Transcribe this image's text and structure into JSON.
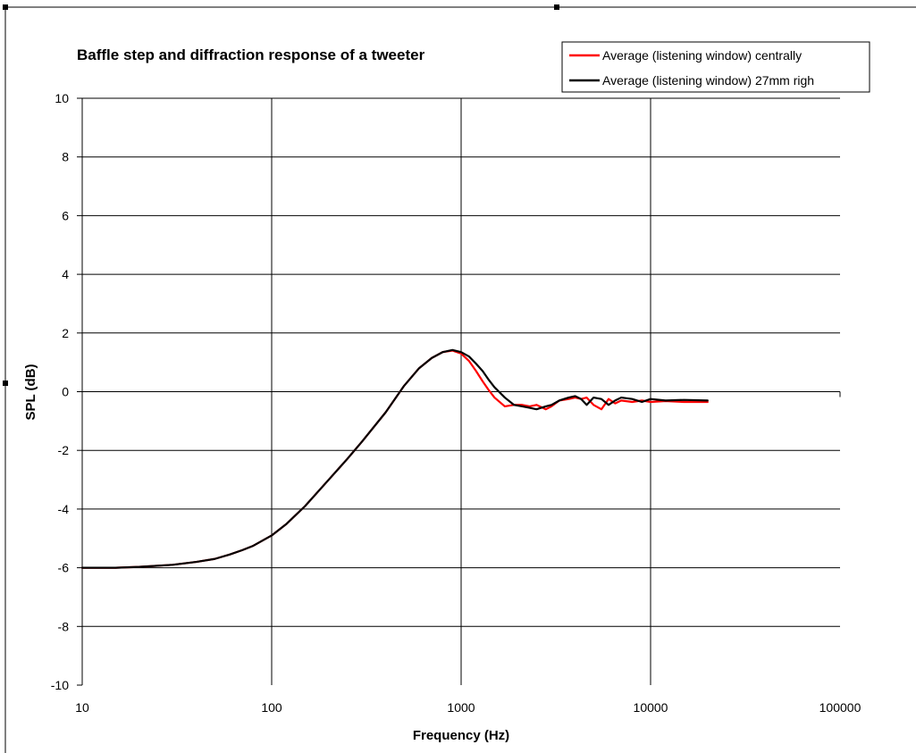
{
  "chart_data": {
    "type": "line",
    "title": "Baffle step and diffraction response of a tweeter",
    "xlabel": "Frequency (Hz)",
    "ylabel": "SPL (dB)",
    "x_scale": "log",
    "xlim": [
      10,
      100000
    ],
    "ylim": [
      -10,
      10
    ],
    "x_ticks": [
      "10",
      "100",
      "1000",
      "10000",
      "100000"
    ],
    "y_ticks": [
      "10",
      "8",
      "6",
      "4",
      "2",
      "0",
      "-2",
      "-4",
      "-6",
      "-8",
      "-10"
    ],
    "grid": true,
    "legend_position": "top-right",
    "series": [
      {
        "name": "Average (listening window) centrally",
        "color": "#ff0000",
        "x": [
          10,
          15,
          20,
          30,
          40,
          50,
          60,
          70,
          80,
          100,
          120,
          150,
          200,
          250,
          300,
          400,
          500,
          600,
          700,
          800,
          900,
          1000,
          1100,
          1200,
          1300,
          1400,
          1500,
          1700,
          1900,
          2100,
          2300,
          2500,
          2800,
          3000,
          3300,
          3700,
          4000,
          4300,
          4600,
          5000,
          5500,
          6000,
          6500,
          7000,
          8000,
          9000,
          10000,
          12000,
          15000,
          20000
        ],
        "values": [
          -6.0,
          -6.0,
          -5.97,
          -5.9,
          -5.8,
          -5.7,
          -5.55,
          -5.4,
          -5.25,
          -4.9,
          -4.5,
          -3.9,
          -3.0,
          -2.3,
          -1.7,
          -0.7,
          0.2,
          0.8,
          1.15,
          1.35,
          1.4,
          1.3,
          1.05,
          0.7,
          0.35,
          0.05,
          -0.2,
          -0.5,
          -0.45,
          -0.45,
          -0.5,
          -0.45,
          -0.6,
          -0.5,
          -0.3,
          -0.25,
          -0.2,
          -0.25,
          -0.2,
          -0.45,
          -0.6,
          -0.25,
          -0.4,
          -0.3,
          -0.35,
          -0.3,
          -0.35,
          -0.32,
          -0.35,
          -0.35
        ]
      },
      {
        "name": "Average (listening window) 27mm righ",
        "color": "#000000",
        "x": [
          10,
          15,
          20,
          30,
          40,
          50,
          60,
          70,
          80,
          100,
          120,
          150,
          200,
          250,
          300,
          400,
          500,
          600,
          700,
          800,
          900,
          1000,
          1100,
          1200,
          1300,
          1400,
          1500,
          1700,
          1900,
          2100,
          2300,
          2500,
          2800,
          3000,
          3300,
          3700,
          4000,
          4300,
          4600,
          5000,
          5500,
          6000,
          6500,
          7000,
          8000,
          9000,
          10000,
          12000,
          15000,
          20000
        ],
        "values": [
          -6.0,
          -6.0,
          -5.97,
          -5.9,
          -5.8,
          -5.7,
          -5.55,
          -5.4,
          -5.25,
          -4.9,
          -4.5,
          -3.9,
          -3.0,
          -2.3,
          -1.7,
          -0.7,
          0.2,
          0.8,
          1.15,
          1.35,
          1.42,
          1.35,
          1.2,
          0.95,
          0.7,
          0.4,
          0.15,
          -0.2,
          -0.45,
          -0.5,
          -0.55,
          -0.6,
          -0.5,
          -0.45,
          -0.3,
          -0.2,
          -0.15,
          -0.25,
          -0.45,
          -0.2,
          -0.25,
          -0.45,
          -0.3,
          -0.2,
          -0.25,
          -0.35,
          -0.25,
          -0.3,
          -0.28,
          -0.3
        ]
      }
    ]
  }
}
